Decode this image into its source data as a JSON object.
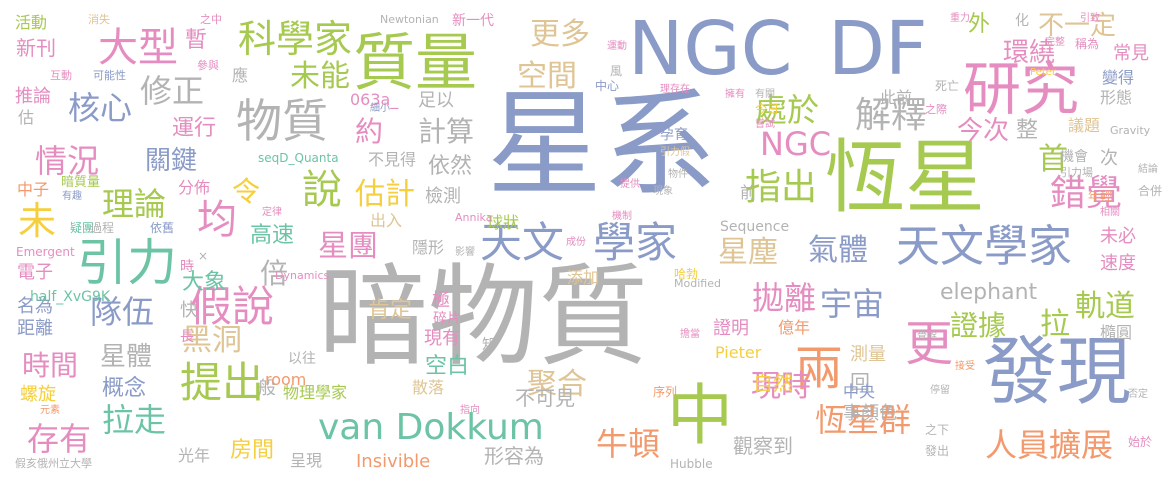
{
  "palette": {
    "blue": "#8b9bc8",
    "gray": "#b3b3b3",
    "green": "#a6c94f",
    "orange": "#f29a6d",
    "teal": "#6cc4a4",
    "pink": "#e58dc0",
    "yellow": "#f5cf3d",
    "tan": "#dfc595"
  },
  "words": [
    {
      "t": "暗物質",
      "c": "gray"
    },
    {
      "t": "星系",
      "c": "blue"
    },
    {
      "t": "NGC",
      "c": "blue"
    },
    {
      "t": "DF",
      "c": "blue"
    },
    {
      "t": "恆星",
      "c": "green"
    },
    {
      "t": "發現",
      "c": "blue"
    },
    {
      "t": "質量",
      "c": "green"
    },
    {
      "t": "研究",
      "c": "pink"
    },
    {
      "t": "天文學家",
      "c": "blue"
    },
    {
      "t": "天文",
      "c": "blue"
    },
    {
      "t": "學家",
      "c": "blue"
    },
    {
      "t": "引力",
      "c": "teal"
    },
    {
      "t": "van Dokkum",
      "c": "teal"
    },
    {
      "t": "科學家",
      "c": "green"
    },
    {
      "t": "大型",
      "c": "pink"
    },
    {
      "t": "物質",
      "c": "gray"
    },
    {
      "t": "提出",
      "c": "green"
    },
    {
      "t": "假說",
      "c": "pink"
    },
    {
      "t": "中",
      "c": "green"
    },
    {
      "t": "兩",
      "c": "orange"
    },
    {
      "t": "更",
      "c": "pink"
    },
    {
      "t": "說",
      "c": "green"
    },
    {
      "t": "均",
      "c": "pink"
    },
    {
      "t": "指出",
      "c": "green"
    },
    {
      "t": "解釋",
      "c": "gray"
    },
    {
      "t": "錯覺",
      "c": "pink"
    },
    {
      "t": "恆星群",
      "c": "orange"
    },
    {
      "t": "人員擴展",
      "c": "orange"
    },
    {
      "t": "牛頓",
      "c": "orange"
    },
    {
      "t": "聚合",
      "c": "tan"
    },
    {
      "t": "現時",
      "c": "pink"
    },
    {
      "t": "未",
      "c": "yellow"
    },
    {
      "t": "未能",
      "c": "green"
    },
    {
      "t": "更多",
      "c": "tan"
    },
    {
      "t": "空間",
      "c": "tan"
    },
    {
      "t": "不一定",
      "c": "tan"
    },
    {
      "t": "核心",
      "c": "blue"
    },
    {
      "t": "修正",
      "c": "gray"
    },
    {
      "t": "情況",
      "c": "pink"
    },
    {
      "t": "理論",
      "c": "green"
    },
    {
      "t": "隊伍",
      "c": "blue"
    },
    {
      "t": "宇宙",
      "c": "blue"
    },
    {
      "t": "拋離",
      "c": "pink"
    },
    {
      "t": "NGC",
      "c": "pink"
    },
    {
      "t": "處於",
      "c": "green"
    },
    {
      "t": "星團",
      "c": "pink"
    },
    {
      "t": "星塵",
      "c": "tan"
    },
    {
      "t": "氣體",
      "c": "blue"
    },
    {
      "t": "證據",
      "c": "green"
    },
    {
      "t": "軌道",
      "c": "green"
    },
    {
      "t": "拉",
      "c": "green"
    },
    {
      "t": "時間",
      "c": "pink"
    },
    {
      "t": "黑洞",
      "c": "tan"
    },
    {
      "t": "存有",
      "c": "pink"
    },
    {
      "t": "拉走",
      "c": "teal"
    },
    {
      "t": "首",
      "c": "green"
    },
    {
      "t": "今次",
      "c": "pink"
    },
    {
      "t": "環繞",
      "c": "pink"
    },
    {
      "t": "倍",
      "c": "gray"
    },
    {
      "t": "令",
      "c": "yellow"
    },
    {
      "t": "估計",
      "c": "yellow"
    },
    {
      "t": "計算",
      "c": "gray"
    },
    {
      "t": "約",
      "c": "pink"
    },
    {
      "t": "關鍵",
      "c": "blue"
    },
    {
      "t": "運行",
      "c": "pink"
    },
    {
      "t": "星體",
      "c": "gray"
    },
    {
      "t": "大象",
      "c": "teal"
    },
    {
      "t": "高速",
      "c": "teal"
    },
    {
      "t": "肯定",
      "c": "tan"
    },
    {
      "t": "空白",
      "c": "teal"
    },
    {
      "t": "概念",
      "c": "blue"
    },
    {
      "t": "房間",
      "c": "yellow"
    },
    {
      "t": "光年",
      "c": "gray"
    },
    {
      "t": "Insivible",
      "c": "orange"
    },
    {
      "t": "形容為",
      "c": "gray"
    },
    {
      "t": "觀察到",
      "c": "gray"
    },
    {
      "t": "不可見",
      "c": "gray"
    },
    {
      "t": "自然",
      "c": "yellow"
    },
    {
      "t": "回",
      "c": "gray"
    },
    {
      "t": "事顏色",
      "c": "gray"
    },
    {
      "t": "證明",
      "c": "pink"
    },
    {
      "t": "億年",
      "c": "orange"
    },
    {
      "t": "中央",
      "c": "blue"
    },
    {
      "t": "測量",
      "c": "tan"
    },
    {
      "t": "外",
      "c": "green"
    },
    {
      "t": "整",
      "c": "gray"
    },
    {
      "t": "常見",
      "c": "pink"
    },
    {
      "t": "變得",
      "c": "blue"
    },
    {
      "t": "形態",
      "c": "gray"
    },
    {
      "t": "議題",
      "c": "tan"
    },
    {
      "t": "未必",
      "c": "pink"
    },
    {
      "t": "速度",
      "c": "pink"
    },
    {
      "t": "橢圓",
      "c": "gray"
    },
    {
      "t": "次",
      "c": "gray"
    },
    {
      "t": "依然",
      "c": "gray"
    },
    {
      "t": "檢測",
      "c": "gray"
    },
    {
      "t": "足以",
      "c": "gray"
    },
    {
      "t": "不見得",
      "c": "gray"
    },
    {
      "t": "隱形",
      "c": "gray"
    },
    {
      "t": "出入",
      "c": "tan"
    },
    {
      "t": "活動",
      "c": "green"
    },
    {
      "t": "新刊",
      "c": "pink"
    },
    {
      "t": "暫",
      "c": "pink"
    },
    {
      "t": "推論",
      "c": "pink"
    },
    {
      "t": "估",
      "c": "gray"
    },
    {
      "t": "應",
      "c": "gray"
    },
    {
      "t": "中子",
      "c": "orange"
    },
    {
      "t": "暗質量",
      "c": "green"
    },
    {
      "t": "電子",
      "c": "pink"
    },
    {
      "t": "名為",
      "c": "blue"
    },
    {
      "t": "距離",
      "c": "blue"
    },
    {
      "t": "螺旋",
      "c": "yellow"
    },
    {
      "t": "快",
      "c": "gray"
    },
    {
      "t": "般",
      "c": "gray"
    },
    {
      "t": "極",
      "c": "pink"
    },
    {
      "t": "碎片",
      "c": "pink"
    },
    {
      "t": "現有",
      "c": "pink"
    },
    {
      "t": "散落",
      "c": "tan"
    },
    {
      "t": "球狀",
      "c": "green"
    },
    {
      "t": "添加",
      "c": "tan"
    },
    {
      "t": "呈現",
      "c": "gray"
    },
    {
      "t": "分佈",
      "c": "pink"
    },
    {
      "t": "物理學家",
      "c": "green"
    },
    {
      "t": "elephant",
      "c": "gray"
    },
    {
      "t": "room",
      "c": "orange"
    },
    {
      "t": "half_XvG9K",
      "c": "teal"
    },
    {
      "t": "seqD_Quanta",
      "c": "teal"
    },
    {
      "t": "063a_",
      "c": "pink"
    },
    {
      "t": "Pieter",
      "c": "yellow"
    },
    {
      "t": "此前",
      "c": "gray"
    },
    {
      "t": "前",
      "c": "gray"
    },
    {
      "t": "知",
      "c": "gray"
    },
    {
      "t": "以往",
      "c": "gray"
    },
    {
      "t": "長",
      "c": "pink"
    },
    {
      "t": "時",
      "c": "pink"
    },
    {
      "t": "疑團",
      "c": "teal"
    },
    {
      "t": "過程",
      "c": "gray"
    },
    {
      "t": "依舊",
      "c": "blue"
    },
    {
      "t": "Newtonian",
      "c": "gray"
    },
    {
      "t": "新一代",
      "c": "pink"
    },
    {
      "t": "消失",
      "c": "tan"
    },
    {
      "t": "之中",
      "c": "pink"
    },
    {
      "t": "互動",
      "c": "pink"
    },
    {
      "t": "可能性",
      "c": "blue"
    },
    {
      "t": "參與",
      "c": "pink"
    },
    {
      "t": "運動",
      "c": "pink"
    },
    {
      "t": "風",
      "c": "gray"
    },
    {
      "t": "中心",
      "c": "blue"
    },
    {
      "t": "重力",
      "c": "pink"
    },
    {
      "t": "化",
      "c": "gray"
    },
    {
      "t": "引致",
      "c": "pink"
    },
    {
      "t": "稱為",
      "c": "pink"
    },
    {
      "t": "完整",
      "c": "pink"
    },
    {
      "t": "死亡",
      "c": "gray"
    },
    {
      "t": "Peter",
      "c": "yellow"
    },
    {
      "t": "理存在",
      "c": "pink"
    },
    {
      "t": "今日",
      "c": "yellow"
    },
    {
      "t": "有關",
      "c": "gray"
    },
    {
      "t": "嘗試",
      "c": "pink"
    },
    {
      "t": "之際",
      "c": "pink"
    },
    {
      "t": "細小",
      "c": "blue"
    },
    {
      "t": "機會",
      "c": "gray"
    },
    {
      "t": "引力場",
      "c": "gray"
    },
    {
      "t": "結論",
      "c": "gray"
    },
    {
      "t": "合併",
      "c": "gray"
    },
    {
      "t": "年輕",
      "c": "orange"
    },
    {
      "t": "相關",
      "c": "pink"
    },
    {
      "t": "Gravity",
      "c": "gray"
    },
    {
      "t": "孕育",
      "c": "blue"
    },
    {
      "t": "擁有",
      "c": "pink"
    },
    {
      "t": "引力假",
      "c": "tan"
    },
    {
      "t": "物件",
      "c": "gray"
    },
    {
      "t": "現象",
      "c": "gray"
    },
    {
      "t": "提供",
      "c": "pink"
    },
    {
      "t": "有趣",
      "c": "blue"
    },
    {
      "t": "定律",
      "c": "pink"
    },
    {
      "t": "Annika",
      "c": "pink"
    },
    {
      "t": "機制",
      "c": "pink"
    },
    {
      "t": "Sequence",
      "c": "gray"
    },
    {
      "t": "成份",
      "c": "pink"
    },
    {
      "t": "影響",
      "c": "gray"
    },
    {
      "t": "哈勃",
      "c": "yellow"
    },
    {
      "t": "Modified",
      "c": "gray"
    },
    {
      "t": "Dynamics",
      "c": "pink"
    },
    {
      "t": "Emergent",
      "c": "pink"
    },
    {
      "t": "Hubble",
      "c": "gray"
    },
    {
      "t": "元素",
      "c": "orange"
    },
    {
      "t": "假亥俄州立大學",
      "c": "gray"
    },
    {
      "t": "指向",
      "c": "pink"
    },
    {
      "t": "序列",
      "c": "orange"
    },
    {
      "t": "骨幹",
      "c": "gray"
    },
    {
      "t": "擔當",
      "c": "pink"
    },
    {
      "t": "接受",
      "c": "orange"
    },
    {
      "t": "停留",
      "c": "gray"
    },
    {
      "t": "之下",
      "c": "gray"
    },
    {
      "t": "發出",
      "c": "gray"
    },
    {
      "t": "始於",
      "c": "pink"
    },
    {
      "t": "否定",
      "c": "gray"
    },
    {
      "t": "×",
      "c": "gray"
    }
  ]
}
